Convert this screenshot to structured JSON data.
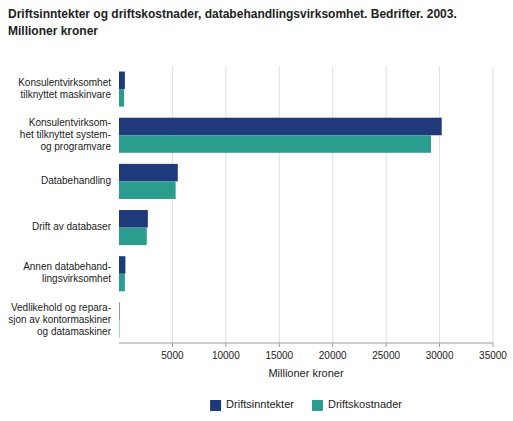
{
  "chart_data": {
    "type": "bar",
    "orientation": "horizontal",
    "title": "Driftsinntekter og driftskostnader, databehandlingsvirksomhet. Bedrifter. 2003.",
    "subtitle": "Millioner kroner",
    "categories": [
      "Konsulentvirksomhet\ntilknyttet maskinvare",
      "Konsulentvirksom-\nhet tilknyttet system-\nog programvare",
      "Databehandling",
      "Drift av databaser",
      "Annen databehand-\nlingsvirksomhet",
      "Vedlikehold og repara-\nsjon av kontormaskiner\nog datamaskiner"
    ],
    "series": [
      {
        "name": "Driftsinntekter",
        "color": "#1f3a7a",
        "values": [
          550,
          30200,
          5500,
          2700,
          600,
          50
        ]
      },
      {
        "name": "Driftskostnader",
        "color": "#2a9d8f",
        "values": [
          480,
          29200,
          5300,
          2600,
          550,
          40
        ]
      }
    ],
    "xlabel": "Millioner kroner",
    "xlim": [
      0,
      35000
    ],
    "xticks": [
      5000,
      10000,
      15000,
      20000,
      25000,
      30000,
      35000
    ],
    "grid": true,
    "legend": "bottom"
  }
}
